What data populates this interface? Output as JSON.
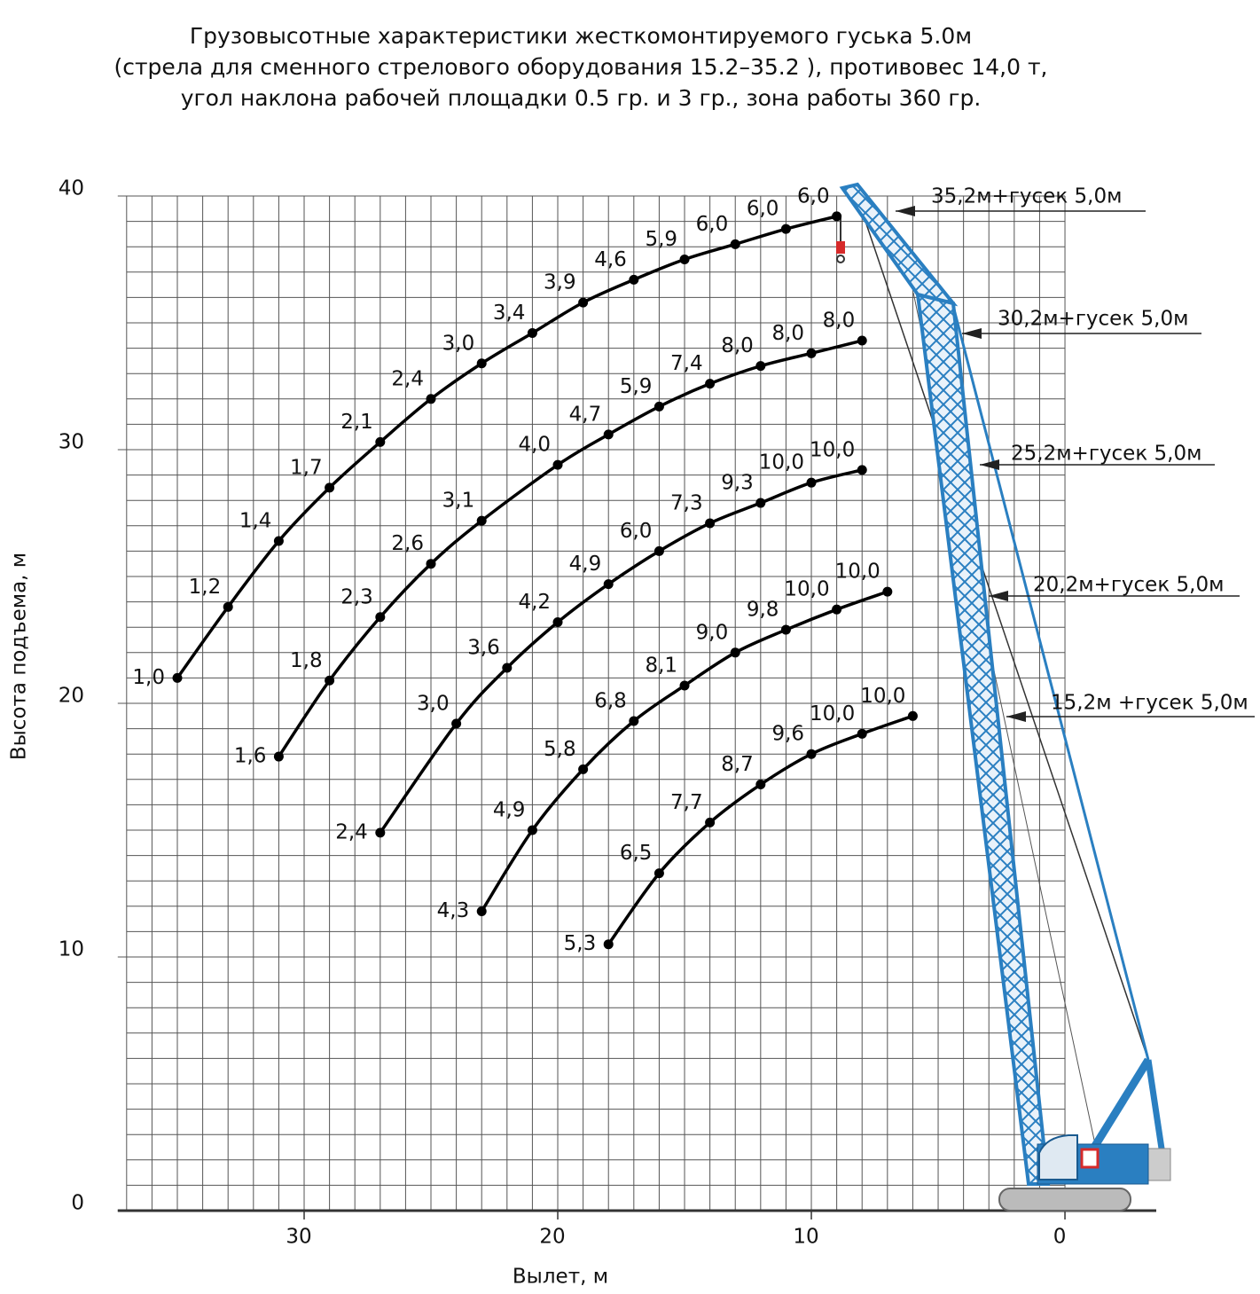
{
  "chart_data": {
    "type": "line",
    "title": [
      "Грузовысотные характеристики жесткомонтируемого гуська 5.0м",
      "(стрела для сменного стрелового оборудования 15.2–35.2 ), противовес 14,0 т,",
      "угол наклона рабочей площадки 0.5 гр. и 3 гр., зона работы 360 гр."
    ],
    "x_label": "Вылет, м",
    "y_label": "Высота подъема, м",
    "xlim": [
      37,
      -3.6
    ],
    "ylim": [
      0,
      40
    ],
    "xticks": [
      30,
      20,
      10,
      0
    ],
    "yticks": [
      0,
      10,
      20,
      30,
      40
    ],
    "grid": true,
    "series": [
      {
        "name": "35,2м+гусек 5,0м",
        "color": "#000000",
        "x": [
          35,
          33,
          31,
          29,
          27,
          25,
          23,
          21,
          19,
          17,
          15,
          13,
          11,
          9
        ],
        "values": [
          21,
          23.8,
          26.4,
          28.5,
          30.3,
          32.0,
          33.4,
          34.6,
          35.8,
          36.7,
          37.5,
          38.1,
          38.7,
          39.2
        ],
        "point_labels": [
          "1,0",
          "1,2",
          "1,4",
          "1,7",
          "2,1",
          "2,4",
          "3,0",
          "3,4",
          "3,9",
          "4,6",
          "5,9",
          "6,0",
          "6,0",
          "6,0"
        ]
      },
      {
        "name": "30,2м+гусек 5,0м",
        "color": "#000000",
        "x": [
          31,
          29,
          27,
          25,
          23,
          20,
          18,
          16,
          14,
          12,
          10,
          8
        ],
        "values": [
          17.9,
          20.9,
          23.4,
          25.5,
          27.2,
          29.4,
          30.6,
          31.7,
          32.6,
          33.3,
          33.8,
          34.3
        ],
        "point_labels": [
          "1,6",
          "1,8",
          "2,3",
          "2,6",
          "3,1",
          "4,0",
          "4,7",
          "5,9",
          "7,4",
          "8,0",
          "8,0",
          "8,0"
        ]
      },
      {
        "name": "25,2м+гусек 5,0м",
        "color": "#000000",
        "x": [
          27,
          24,
          22,
          20,
          18,
          16,
          14,
          12,
          10,
          8
        ],
        "values": [
          14.9,
          19.2,
          21.4,
          23.2,
          24.7,
          26.0,
          27.1,
          27.9,
          28.7,
          29.2
        ],
        "point_labels": [
          "2,4",
          "3,0",
          "3,6",
          "4,2",
          "4,9",
          "6,0",
          "7,3",
          "9,3",
          "10,0",
          "10,0"
        ]
      },
      {
        "name": "20,2м+гусек 5,0м",
        "color": "#000000",
        "x": [
          23,
          21,
          19,
          17,
          15,
          13,
          11,
          9,
          7
        ],
        "values": [
          11.8,
          15.0,
          17.4,
          19.3,
          20.7,
          22.0,
          22.9,
          23.7,
          24.4
        ],
        "point_labels": [
          "4,3",
          "4,9",
          "5,8",
          "6,8",
          "8,1",
          "9,0",
          "9,8",
          "10,0",
          "10,0"
        ]
      },
      {
        "name": "15,2м +гусек 5,0м",
        "color": "#000000",
        "x": [
          18,
          16,
          14,
          12,
          10,
          8,
          6
        ],
        "values": [
          10.5,
          13.3,
          15.3,
          16.8,
          18.0,
          18.8,
          19.5
        ],
        "point_labels": [
          "5,3",
          "6,5",
          "7,7",
          "8,7",
          "9,6",
          "10,0",
          "10,0"
        ]
      }
    ]
  }
}
